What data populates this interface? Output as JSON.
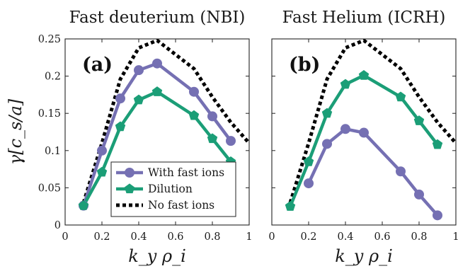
{
  "chart_data": [
    {
      "type": "line",
      "title": "Fast deuterium (NBI)",
      "panel_label": "(a)",
      "xlabel": "k_y ρ_i",
      "ylabel": "γ[c_s/a]",
      "xlim": [
        0,
        1
      ],
      "ylim": [
        0,
        0.25
      ],
      "xticks": [
        "0",
        "0.2",
        "0.4",
        "0.6",
        "0.8",
        "1"
      ],
      "yticks": [
        "0",
        "0.05",
        "0.1",
        "0.15",
        "0.2",
        "0.25"
      ],
      "grid": false,
      "legend_position": "bottom-left",
      "series": [
        {
          "name": "With fast ions",
          "color": "#7570b3",
          "marker": "circle",
          "style": "solid",
          "x": [
            0.1,
            0.2,
            0.3,
            0.4,
            0.5,
            0.7,
            0.8,
            0.9
          ],
          "values": [
            0.026,
            0.1,
            0.17,
            0.208,
            0.217,
            0.179,
            0.146,
            0.113
          ]
        },
        {
          "name": "Dilution",
          "color": "#1b9e77",
          "marker": "pentagon",
          "style": "solid",
          "x": [
            0.1,
            0.2,
            0.3,
            0.4,
            0.5,
            0.7,
            0.8,
            0.9
          ],
          "values": [
            0.026,
            0.071,
            0.132,
            0.168,
            0.179,
            0.147,
            0.116,
            0.085
          ]
        },
        {
          "name": "No fast ions",
          "color": "#000000",
          "marker": "none",
          "style": "dotted",
          "x": [
            0.1,
            0.2,
            0.3,
            0.4,
            0.5,
            0.7,
            0.8,
            0.9,
            1.0
          ],
          "values": [
            0.03,
            0.11,
            0.196,
            0.238,
            0.248,
            0.21,
            0.172,
            0.138,
            0.11
          ]
        }
      ]
    },
    {
      "type": "line",
      "title": "Fast Helium (ICRH)",
      "panel_label": "(b)",
      "xlabel": "k_y ρ_i",
      "ylabel": "",
      "xlim": [
        0,
        1
      ],
      "ylim": [
        0,
        0.25
      ],
      "xticks": [
        "0",
        "0.2",
        "0.4",
        "0.6",
        "0.8",
        "1"
      ],
      "yticks": [],
      "grid": false,
      "series": [
        {
          "name": "With fast ions",
          "color": "#7570b3",
          "marker": "circle",
          "style": "solid",
          "x": [
            0.2,
            0.3,
            0.4,
            0.5,
            0.7,
            0.8,
            0.9
          ],
          "values": [
            0.056,
            0.109,
            0.129,
            0.124,
            0.072,
            0.041,
            0.013
          ]
        },
        {
          "name": "Dilution",
          "color": "#1b9e77",
          "marker": "pentagon",
          "style": "solid",
          "x": [
            0.1,
            0.2,
            0.3,
            0.4,
            0.5,
            0.7,
            0.8,
            0.9
          ],
          "values": [
            0.025,
            0.085,
            0.15,
            0.189,
            0.201,
            0.172,
            0.14,
            0.108
          ]
        },
        {
          "name": "No fast ions",
          "color": "#000000",
          "marker": "none",
          "style": "dotted",
          "x": [
            0.1,
            0.2,
            0.3,
            0.4,
            0.5,
            0.7,
            0.8,
            0.9,
            1.0
          ],
          "values": [
            0.03,
            0.11,
            0.196,
            0.238,
            0.248,
            0.21,
            0.172,
            0.138,
            0.11
          ]
        }
      ]
    }
  ]
}
